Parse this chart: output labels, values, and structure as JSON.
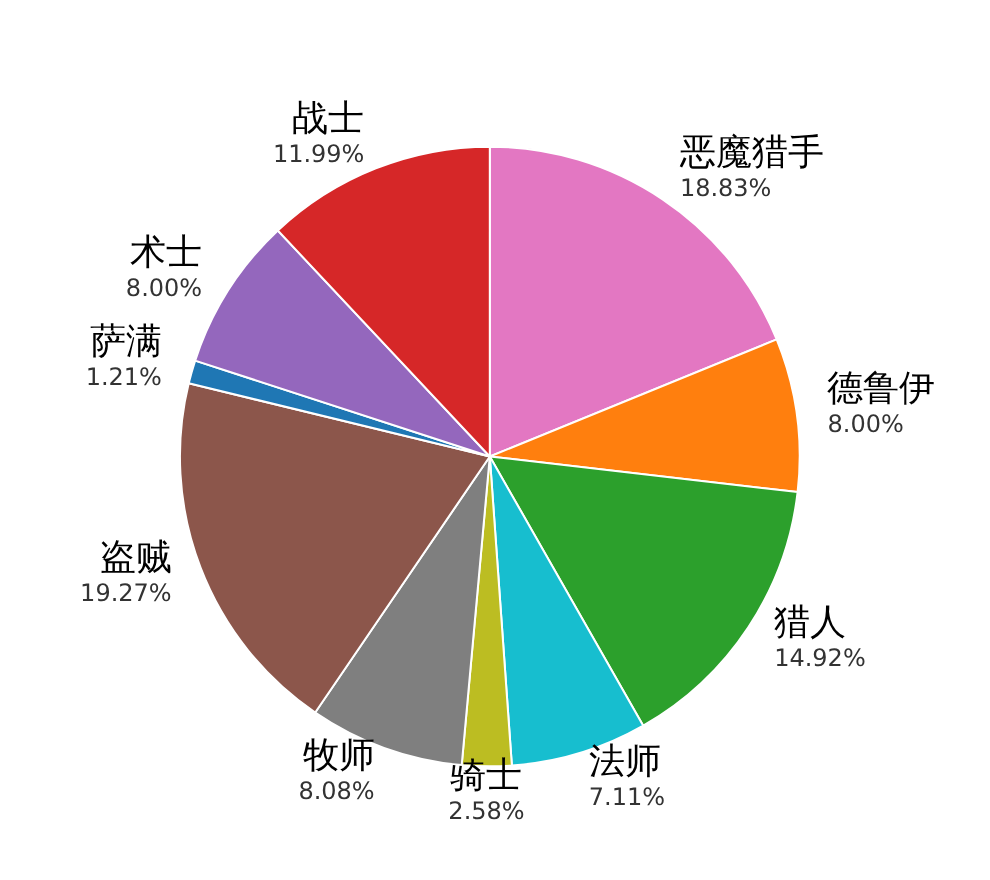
{
  "chart_data": {
    "type": "pie",
    "categories": [
      "恶魔猎手",
      "德鲁伊",
      "猎人",
      "法师",
      "骑士",
      "牧师",
      "盗贼",
      "萨满",
      "术士",
      "战士"
    ],
    "values": [
      18.83,
      8.0,
      14.92,
      7.11,
      2.58,
      8.08,
      19.27,
      1.21,
      8.0,
      11.99
    ],
    "colors": [
      "#e377c2",
      "#ff7f0e",
      "#2ca02c",
      "#17becf",
      "#bcbd22",
      "#7f7f7f",
      "#8c564b",
      "#1f77b4",
      "#9467bd",
      "#d62728"
    ],
    "value_labels": [
      "18.83%",
      "8.00%",
      "14.92%",
      "7.11%",
      "2.58%",
      "8.08%",
      "19.27%",
      "1.21%",
      "8.00%",
      "11.99%"
    ],
    "legend": false
  }
}
